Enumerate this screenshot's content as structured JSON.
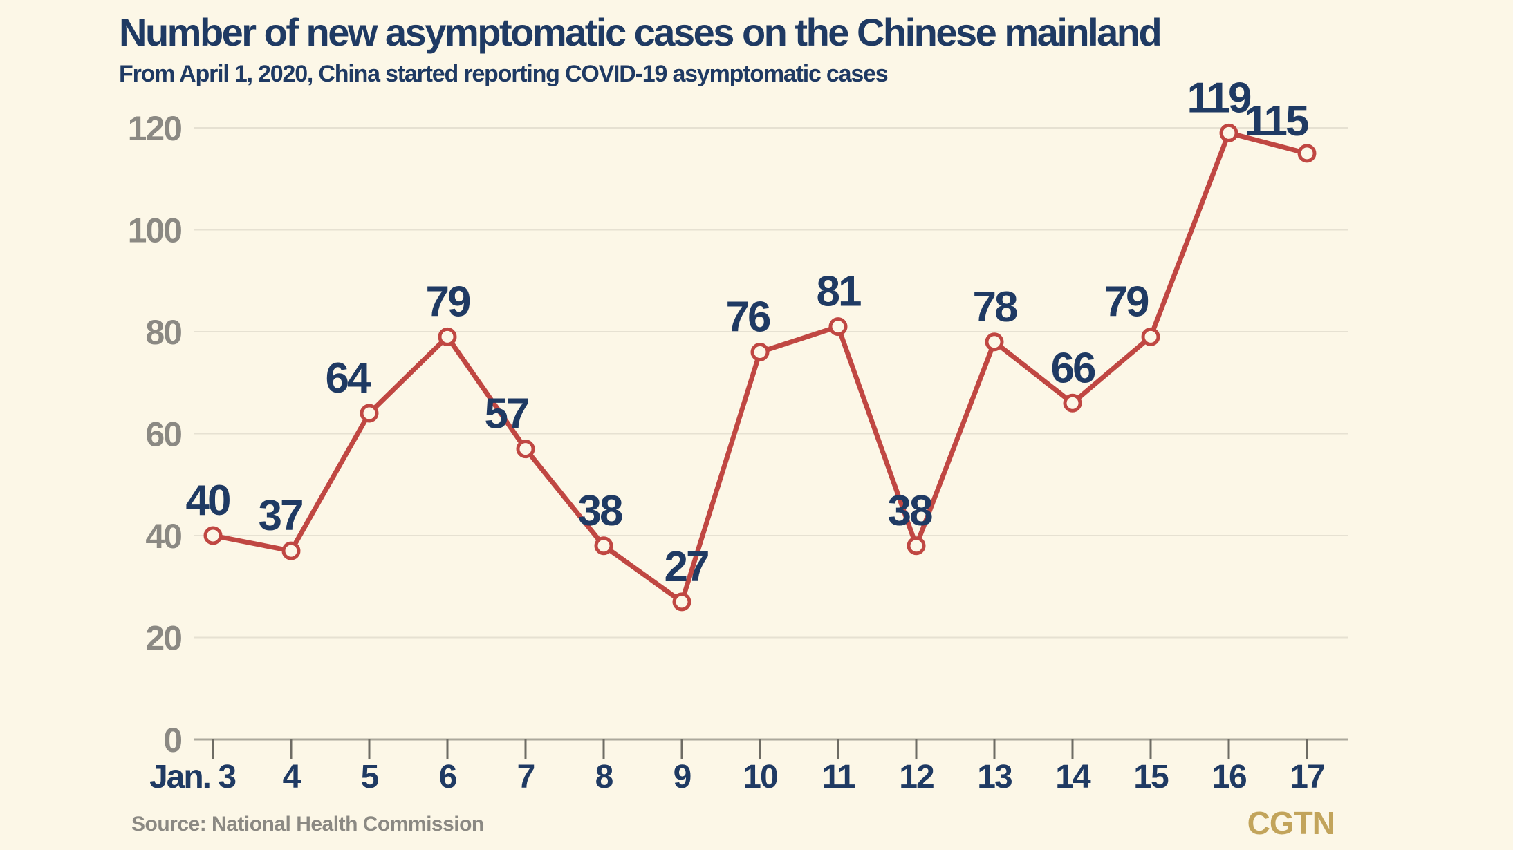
{
  "header": {
    "title": "Number of new asymptomatic cases on the Chinese mainland",
    "subtitle": "From April 1, 2020, China started reporting COVID-19 asymptomatic cases"
  },
  "footer": {
    "source": "Source: National Health Commission",
    "logo": "CGTN"
  },
  "chart_data": {
    "type": "line",
    "title": "Number of new asymptomatic cases on the Chinese mainland",
    "subtitle": "From April 1, 2020, China started reporting COVID-19 asymptomatic cases",
    "categories": [
      "Jan. 3",
      "4",
      "5",
      "6",
      "7",
      "8",
      "9",
      "10",
      "11",
      "12",
      "13",
      "14",
      "15",
      "16",
      "17"
    ],
    "values": [
      40,
      37,
      64,
      79,
      57,
      38,
      27,
      76,
      81,
      38,
      78,
      66,
      79,
      119,
      115
    ],
    "xlabel": "",
    "ylabel": "",
    "ylim": [
      0,
      120
    ],
    "yticks": [
      0,
      20,
      40,
      60,
      80,
      100,
      120
    ],
    "grid": true,
    "legend": false,
    "marker": "open-circle",
    "colors": {
      "background": "#FCF7E7",
      "line": "#C04742",
      "marker_fill": "#FCF7E7",
      "point_label": "#1F3A63",
      "x_tick_label": "#1F3A63",
      "y_tick_label": "#8B8983",
      "gridline": "#E6E1D2",
      "axis_line": "#ABA89C",
      "tick": "#6E6C64"
    },
    "label_dx": [
      -8,
      -16,
      -32,
      0,
      -28,
      -6,
      6,
      -18,
      0,
      -10,
      0,
      0,
      -36,
      -15,
      -45
    ],
    "label_dy": [
      0,
      0,
      0,
      0,
      0,
      0,
      0,
      0,
      0,
      0,
      0,
      0,
      0,
      0,
      4
    ]
  }
}
